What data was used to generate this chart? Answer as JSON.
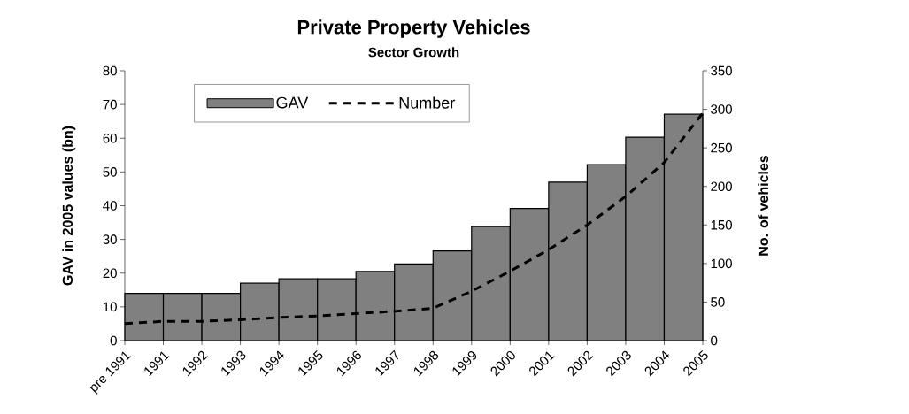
{
  "chart_data": {
    "type": "bar",
    "title": "Private Property Vehicles",
    "subtitle": "Sector Growth",
    "ylabel": "GAV in 2005 values (bn)",
    "y2label": "No. of vehicles",
    "categories": [
      "pre 1991",
      "1991",
      "1992",
      "1993",
      "1994",
      "1995",
      "1996",
      "1997",
      "1998",
      "1999",
      "2000",
      "2001",
      "2002",
      "2003",
      "2004",
      "2005"
    ],
    "series": [
      {
        "name": "GAV",
        "color": "#808080",
        "values": [
          14.0,
          14.0,
          14.0,
          17.0,
          18.3,
          18.3,
          20.5,
          22.7,
          26.6,
          33.8,
          39.2,
          47.0,
          52.2,
          60.3,
          67.1,
          null
        ]
      },
      {
        "name": "Number",
        "type": "line",
        "axis": "y2",
        "color": "#000000",
        "line_style": "dashed",
        "values": [
          22,
          25,
          25,
          27,
          30,
          32,
          35,
          38,
          42,
          64,
          90,
          118,
          150,
          187,
          231,
          295
        ]
      }
    ],
    "ylim": [
      0,
      80
    ],
    "yticks": [
      0,
      10,
      20,
      30,
      40,
      50,
      60,
      70,
      80
    ],
    "y2lim": [
      0,
      350
    ],
    "y2ticks": [
      0,
      50,
      100,
      150,
      200,
      250,
      300,
      350
    ],
    "legend": "top left",
    "grid": false
  }
}
